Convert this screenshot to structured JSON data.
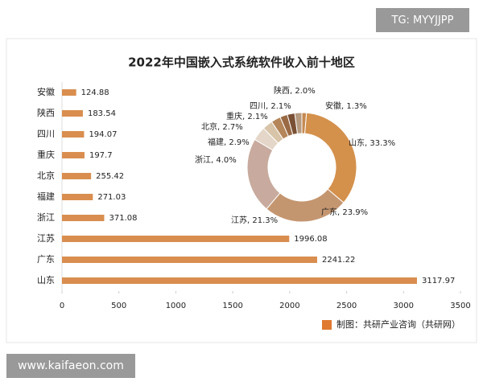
{
  "watermark": "TG: MYYJJPP",
  "footer_url": "www.kaifaeon.com",
  "chart_data": [
    {
      "type": "hbar",
      "title": "2022年中国嵌入式系统软件收入前十地区",
      "categories": [
        "安徽",
        "陕西",
        "四川",
        "重庆",
        "北京",
        "福建",
        "浙江",
        "江苏",
        "广东",
        "山东"
      ],
      "values": [
        124.88,
        183.54,
        194.07,
        197.7,
        255.42,
        271.03,
        371.08,
        1996.08,
        2241.22,
        3117.97
      ],
      "color": "#d98e4f",
      "xlim": [
        0,
        3500
      ],
      "xticks": [
        0,
        500,
        1000,
        1500,
        2000,
        2500,
        3000,
        3500
      ],
      "source": "制图：共研产业咨询（共研网）"
    },
    {
      "type": "donut",
      "labels": [
        "安徽, 1.3%",
        "山东, 33.3%",
        "广东, 23.9%",
        "江苏, 21.3%",
        "浙江, 4.0%",
        "福建, 2.9%",
        "北京, 2.7%",
        "重庆, 2.1%",
        "四川, 2.1%",
        "陕西, 2.0%"
      ],
      "values": [
        1.3,
        33.3,
        23.9,
        21.3,
        4.0,
        2.9,
        2.7,
        2.1,
        2.1,
        2.0
      ],
      "colors": [
        "#c58a52",
        "#d4914c",
        "#c49670",
        "#c8ab9e",
        "#e4d6c8",
        "#d8c4a8",
        "#b5865a",
        "#9a6a45",
        "#7a5035",
        "#b59a80"
      ]
    }
  ]
}
